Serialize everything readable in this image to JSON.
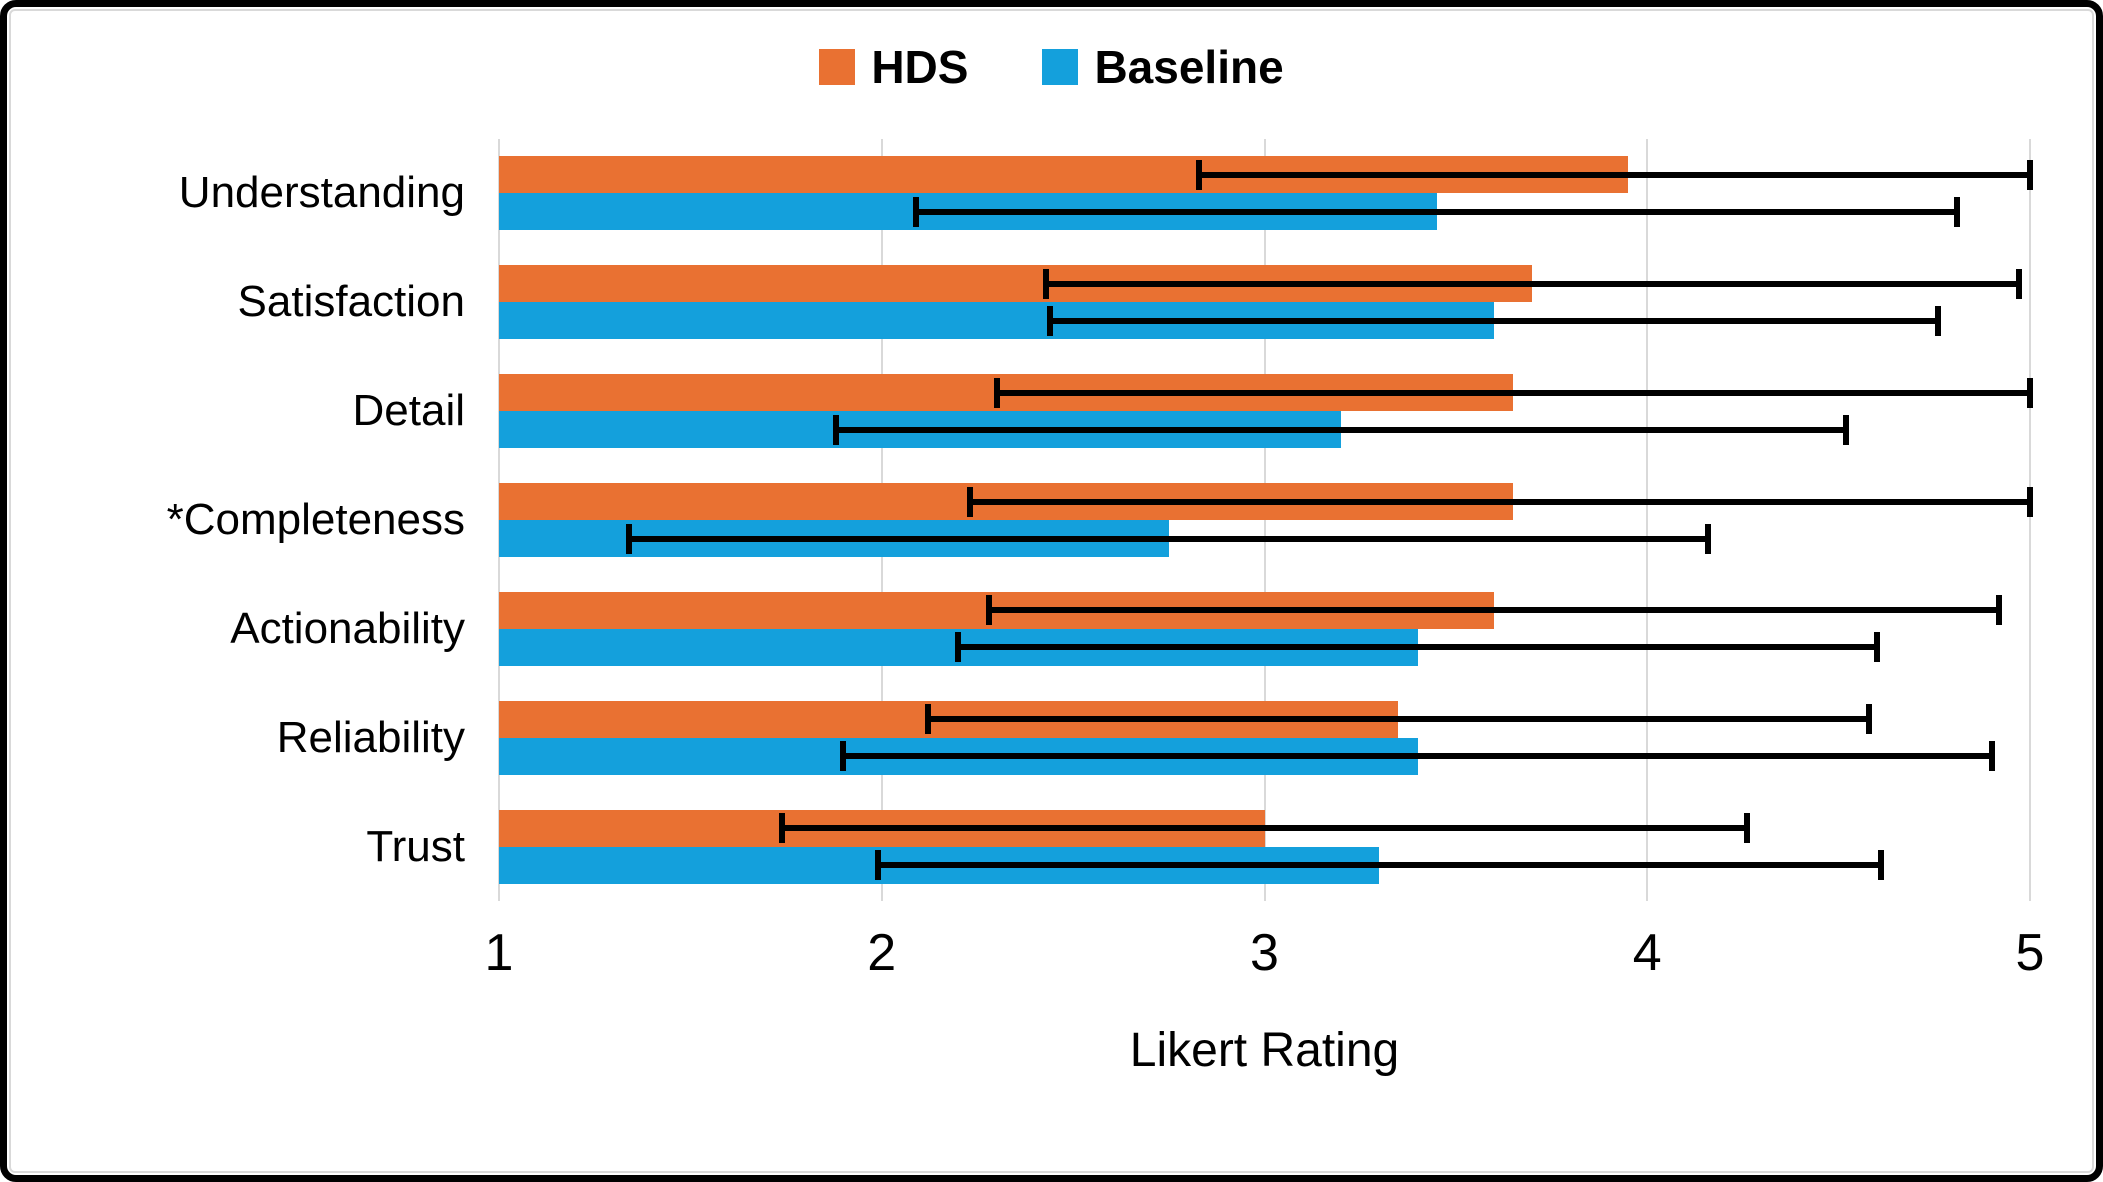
{
  "figure": {
    "outer_border_color": "#000000",
    "inner_border_color": "#D9D9D9",
    "background": "#FFFFFF"
  },
  "legend": {
    "items": [
      {
        "label": "HDS",
        "color": "#E97132"
      },
      {
        "label": "Baseline",
        "color": "#14A0DC"
      }
    ],
    "position": "top-center"
  },
  "chart_data": {
    "type": "bar",
    "orientation": "horizontal",
    "title": "",
    "xlabel": "Likert Rating",
    "ylabel": "",
    "xlim": [
      1,
      5
    ],
    "x_ticks": [
      1,
      2,
      3,
      4,
      5
    ],
    "grid": "vertical",
    "gridline_color": "#D9D9D9",
    "error_bar_color": "#000000",
    "categories": [
      "Understanding",
      "Satisfaction",
      "Detail",
      "*Completeness",
      "Actionability",
      "Reliability",
      "Trust"
    ],
    "series": [
      {
        "name": "HDS",
        "color": "#E97132",
        "values": [
          3.95,
          3.7,
          3.65,
          3.65,
          3.6,
          3.35,
          3.0
        ],
        "error_low": [
          2.83,
          2.43,
          2.3,
          2.23,
          2.28,
          2.12,
          1.74
        ],
        "error_high": [
          5.0,
          4.97,
          5.0,
          5.0,
          4.92,
          4.58,
          4.26
        ]
      },
      {
        "name": "Baseline",
        "color": "#14A0DC",
        "values": [
          3.45,
          3.6,
          3.2,
          2.75,
          3.4,
          3.4,
          3.3
        ],
        "error_low": [
          2.09,
          2.44,
          1.88,
          1.34,
          2.2,
          1.9,
          1.99
        ],
        "error_high": [
          4.81,
          4.76,
          4.52,
          4.16,
          4.6,
          4.9,
          4.61
        ]
      }
    ]
  }
}
